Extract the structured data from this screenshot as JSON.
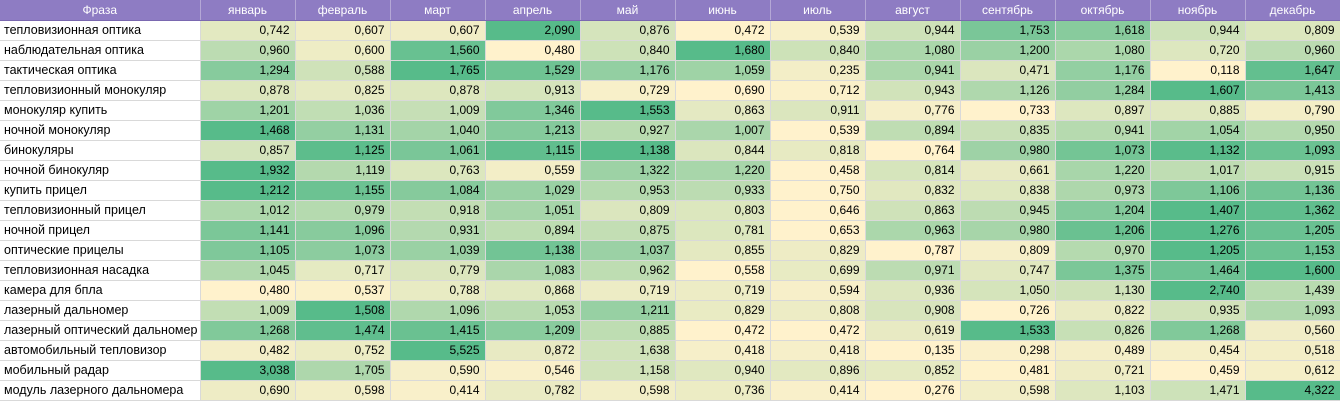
{
  "sheet": {
    "header_phrase": "Фраза",
    "months": [
      "январь",
      "февраль",
      "март",
      "апрель",
      "май",
      "июнь",
      "июль",
      "август",
      "сентябрь",
      "октябрь",
      "ноябрь",
      "декабрь"
    ],
    "rows": [
      {
        "phrase": "тепловизионная оптика",
        "values": [
          "0,742",
          "0,607",
          "0,607",
          "2,090",
          "0,876",
          "0,472",
          "0,539",
          "0,944",
          "1,753",
          "1,618",
          "0,944",
          "0,809"
        ]
      },
      {
        "phrase": "наблюдательная оптика",
        "values": [
          "0,960",
          "0,600",
          "1,560",
          "0,480",
          "0,840",
          "1,680",
          "0,840",
          "1,080",
          "1,200",
          "1,080",
          "0,720",
          "0,960"
        ]
      },
      {
        "phrase": "тактическая оптика",
        "values": [
          "1,294",
          "0,588",
          "1,765",
          "1,529",
          "1,176",
          "1,059",
          "0,235",
          "0,941",
          "0,471",
          "1,176",
          "0,118",
          "1,647"
        ]
      },
      {
        "phrase": "тепловизионный монокуляр",
        "values": [
          "0,878",
          "0,825",
          "0,878",
          "0,913",
          "0,729",
          "0,690",
          "0,712",
          "0,943",
          "1,126",
          "1,284",
          "1,607",
          "1,413"
        ]
      },
      {
        "phrase": "монокуляр купить",
        "values": [
          "1,201",
          "1,036",
          "1,009",
          "1,346",
          "1,553",
          "0,863",
          "0,911",
          "0,776",
          "0,733",
          "0,897",
          "0,885",
          "0,790"
        ]
      },
      {
        "phrase": "ночной монокуляр",
        "values": [
          "1,468",
          "1,131",
          "1,040",
          "1,213",
          "0,927",
          "1,007",
          "0,539",
          "0,894",
          "0,835",
          "0,941",
          "1,054",
          "0,950"
        ]
      },
      {
        "phrase": "бинокуляры",
        "values": [
          "0,857",
          "1,125",
          "1,061",
          "1,115",
          "1,138",
          "0,844",
          "0,818",
          "0,764",
          "0,980",
          "1,073",
          "1,132",
          "1,093"
        ]
      },
      {
        "phrase": "ночной бинокуляр",
        "values": [
          "1,932",
          "1,119",
          "0,763",
          "0,559",
          "1,322",
          "1,220",
          "0,458",
          "0,814",
          "0,661",
          "1,220",
          "1,017",
          "0,915"
        ]
      },
      {
        "phrase": "купить прицел",
        "values": [
          "1,212",
          "1,155",
          "1,084",
          "1,029",
          "0,953",
          "0,933",
          "0,750",
          "0,832",
          "0,838",
          "0,973",
          "1,106",
          "1,136"
        ]
      },
      {
        "phrase": "тепловизионный прицел",
        "values": [
          "1,012",
          "0,979",
          "0,918",
          "1,051",
          "0,809",
          "0,803",
          "0,646",
          "0,863",
          "0,945",
          "1,204",
          "1,407",
          "1,362"
        ]
      },
      {
        "phrase": "ночной прицел",
        "values": [
          "1,141",
          "1,096",
          "0,931",
          "0,894",
          "0,875",
          "0,781",
          "0,653",
          "0,963",
          "0,980",
          "1,206",
          "1,276",
          "1,205"
        ]
      },
      {
        "phrase": "оптические прицелы",
        "values": [
          "1,105",
          "1,073",
          "1,039",
          "1,138",
          "1,037",
          "0,855",
          "0,829",
          "0,787",
          "0,809",
          "0,970",
          "1,205",
          "1,153"
        ]
      },
      {
        "phrase": "тепловизионная насадка",
        "values": [
          "1,045",
          "0,717",
          "0,779",
          "1,083",
          "0,962",
          "0,558",
          "0,699",
          "0,971",
          "0,747",
          "1,375",
          "1,464",
          "1,600"
        ]
      },
      {
        "phrase": "камера для бпла",
        "values": [
          "0,480",
          "0,537",
          "0,788",
          "0,868",
          "0,719",
          "0,719",
          "0,594",
          "0,936",
          "1,050",
          "1,130",
          "2,740",
          "1,439"
        ]
      },
      {
        "phrase": "лазерный дальномер",
        "values": [
          "1,009",
          "1,508",
          "1,096",
          "1,053",
          "1,211",
          "0,829",
          "0,808",
          "0,908",
          "0,726",
          "0,822",
          "0,935",
          "1,093"
        ]
      },
      {
        "phrase": "лазерный оптический дальномер",
        "values": [
          "1,268",
          "1,474",
          "1,415",
          "1,209",
          "0,885",
          "0,472",
          "0,472",
          "0,619",
          "1,533",
          "0,826",
          "1,268",
          "0,560"
        ]
      },
      {
        "phrase": "автомобильный тепловизор",
        "values": [
          "0,482",
          "0,752",
          "5,525",
          "0,872",
          "1,638",
          "0,418",
          "0,418",
          "0,135",
          "0,298",
          "0,489",
          "0,454",
          "0,518"
        ]
      },
      {
        "phrase": "мобильный радар",
        "values": [
          "3,038",
          "1,705",
          "0,590",
          "0,546",
          "1,158",
          "0,940",
          "0,896",
          "0,852",
          "0,481",
          "0,721",
          "0,459",
          "0,612"
        ]
      },
      {
        "phrase": "модуль лазерного дальномера",
        "values": [
          "0,690",
          "0,598",
          "0,414",
          "0,782",
          "0,598",
          "0,736",
          "0,414",
          "0,276",
          "0,598",
          "1,103",
          "1,471",
          "4,322"
        ]
      }
    ]
  }
}
